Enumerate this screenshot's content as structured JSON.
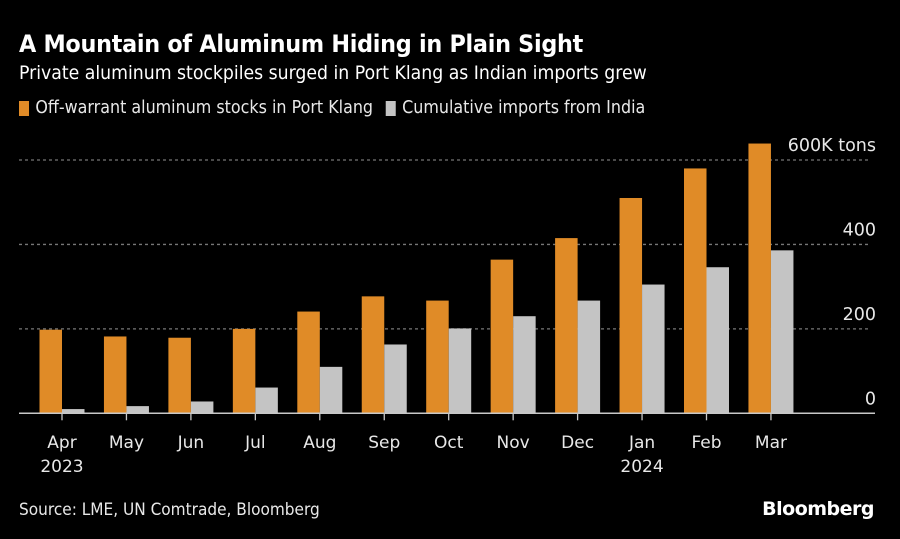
{
  "header": {
    "title": "A Mountain of Aluminum Hiding in Plain Sight",
    "subtitle": "Private aluminum stockpiles surged in Port Klang as Indian imports grew"
  },
  "footer": {
    "source": "Source: LME, UN Comtrade, Bloomberg",
    "brand": "Bloomberg"
  },
  "colors": {
    "background": "#000000",
    "orange": "#E08B27",
    "gray": "#C4C4C4",
    "grid": "#777777",
    "axis": "#C8C8C8",
    "text": "#E8E8E8"
  },
  "chart_data": {
    "type": "bar",
    "title": "A Mountain of Aluminum Hiding in Plain Sight",
    "subtitle": "Private aluminum stockpiles surged in Port Klang as Indian imports grew",
    "xlabel": "",
    "ylabel": "K tons",
    "categories": [
      "Apr",
      "May",
      "Jun",
      "Jul",
      "Aug",
      "Sep",
      "Oct",
      "Nov",
      "Dec",
      "Jan",
      "Feb",
      "Mar"
    ],
    "category_sublabels": [
      "2023",
      "",
      "",
      "",
      "",
      "",
      "",
      "",
      "",
      "2024",
      "",
      ""
    ],
    "series": [
      {
        "name": "Off-warrant aluminum stocks in Port Klang",
        "color": "#E08B27",
        "values": [
          198,
          182,
          179,
          200,
          241,
          277,
          267,
          364,
          415,
          510,
          580,
          639
        ]
      },
      {
        "name": "Cumulative imports from India",
        "color": "#C4C4C4",
        "values": [
          10,
          17,
          28,
          61,
          110,
          163,
          201,
          230,
          267,
          305,
          346,
          386
        ]
      }
    ],
    "yticks": [
      0,
      200,
      400,
      600
    ],
    "ytick_labels": [
      "0",
      "200",
      "400",
      "600K tons"
    ],
    "ylim": [
      0,
      640
    ],
    "grid": true,
    "grid_style": "dotted",
    "yaxis_side": "right",
    "legend_position": "top-left"
  }
}
